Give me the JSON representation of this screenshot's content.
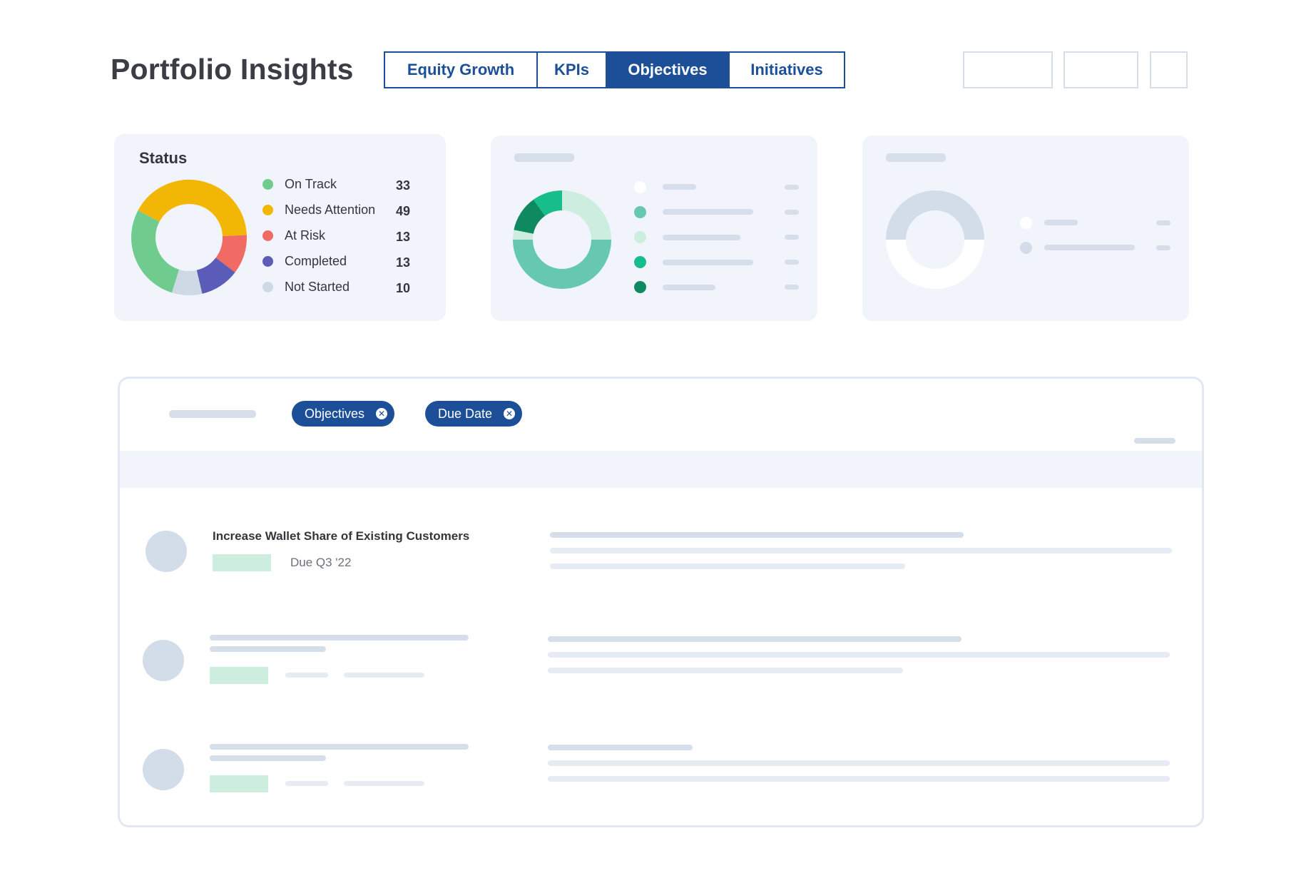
{
  "header": {
    "title": "Portfolio Insights",
    "tabs": [
      {
        "label": "Equity Growth",
        "active": false
      },
      {
        "label": "KPIs",
        "active": false
      },
      {
        "label": "Objectives",
        "active": true
      },
      {
        "label": "Initiatives",
        "active": false
      }
    ]
  },
  "status_card": {
    "title": "Status",
    "items": [
      {
        "label": "On Track",
        "value": "33",
        "color": "#6fcc8e"
      },
      {
        "label": "Needs Attention",
        "value": "49",
        "color": "#f2b705"
      },
      {
        "label": "At Risk",
        "value": "13",
        "color": "#ef6b63"
      },
      {
        "label": "Completed",
        "value": "13",
        "color": "#5b5cb8"
      },
      {
        "label": "Not Started",
        "value": "10",
        "color": "#cfd9e6"
      }
    ]
  },
  "filters": {
    "chips": [
      {
        "label": "Objectives"
      },
      {
        "label": "Due Date"
      }
    ]
  },
  "list": {
    "rows": [
      {
        "title": "Increase Wallet Share of Existing Customers",
        "due": "Due Q3 '22"
      }
    ]
  },
  "colors": {
    "accent": "#1c4f98",
    "card_bg": "#f1f5fb",
    "placeholder": "#d6deea",
    "tag_green": "#cdeedf"
  },
  "chart_data": {
    "type": "pie",
    "title": "Status",
    "categories": [
      "On Track",
      "Needs Attention",
      "At Risk",
      "Completed",
      "Not Started"
    ],
    "values": [
      33,
      49,
      13,
      13,
      10
    ],
    "colors": [
      "#6fcc8e",
      "#f2b705",
      "#ef6b63",
      "#5b5cb8",
      "#cfd9e6"
    ],
    "donut": true,
    "legend": "right"
  }
}
